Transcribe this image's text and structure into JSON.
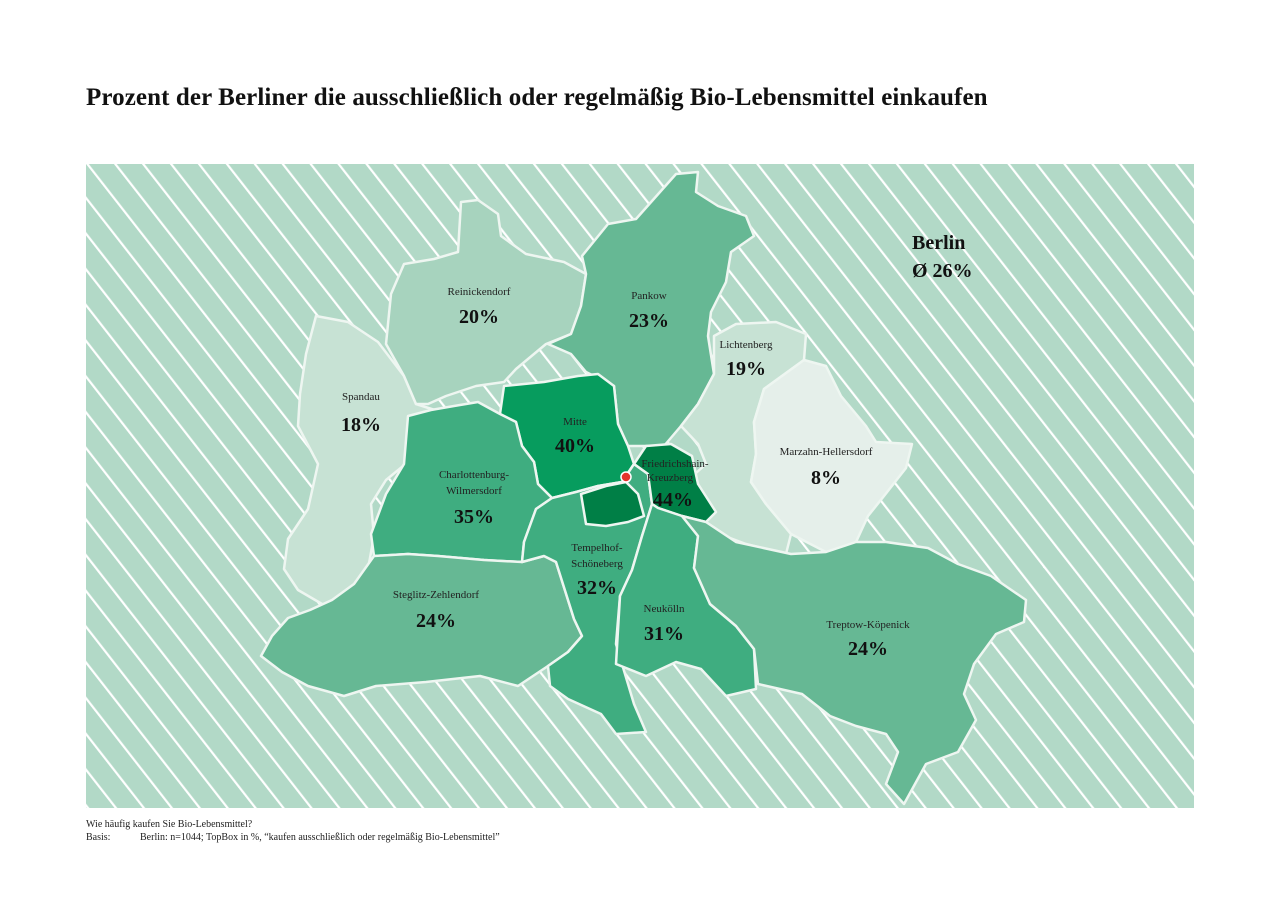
{
  "title": "Prozent der Berliner die ausschließlich oder regelmäßig Bio-Lebensmittel einkaufen",
  "summary": {
    "name": "Berlin",
    "average": "Ø 26%"
  },
  "colors": {
    "sea": "#b2d9c7",
    "stripe": "#ffffff",
    "shade_8": "#e5efea",
    "shade_18": "#c7e2d4",
    "shade_20": "#a7d3be",
    "shade_24": "#66b894",
    "shade_35": "#3fad80",
    "shade_40": "#079c5e",
    "shade_44": "#007f46",
    "marker": "#e4322b"
  },
  "districts": {
    "reinickendorf": {
      "name": "Reinickendorf",
      "value": "20%"
    },
    "pankow": {
      "name": "Pankow",
      "value": "23%"
    },
    "lichtenberg": {
      "name": "Lichtenberg",
      "value": "19%"
    },
    "spandau": {
      "name": "Spandau",
      "value": "18%"
    },
    "mitte": {
      "name": "Mitte",
      "value": "40%"
    },
    "friedrichshain": {
      "name_line1": "Friedrichshain-",
      "name_line2": "Kreuzberg",
      "value": "44%"
    },
    "marzahn": {
      "name": "Marzahn-Hellersdorf",
      "value": "8%"
    },
    "charlottenburg": {
      "name_line1": "Charlottenburg-",
      "name_line2": "Wilmersdorf",
      "value": "35%"
    },
    "tempelhof": {
      "name_line1": "Tempelhof-",
      "name_line2": "Schöneberg",
      "value": "32%"
    },
    "steglitz": {
      "name": "Steglitz-Zehlendorf",
      "value": "24%"
    },
    "neukoelln": {
      "name": "Neukölln",
      "value": "31%"
    },
    "treptow": {
      "name": "Treptow-Köpenick",
      "value": "24%"
    }
  },
  "footnote": {
    "question": "Wie häufig kaufen Sie Bio-Lebensmittel?",
    "basis_label": "Basis:",
    "basis_text": "Berlin: n=1044; TopBox in %, “kaufen ausschließlich oder regelmäßig Bio-Lebensmittel”"
  }
}
